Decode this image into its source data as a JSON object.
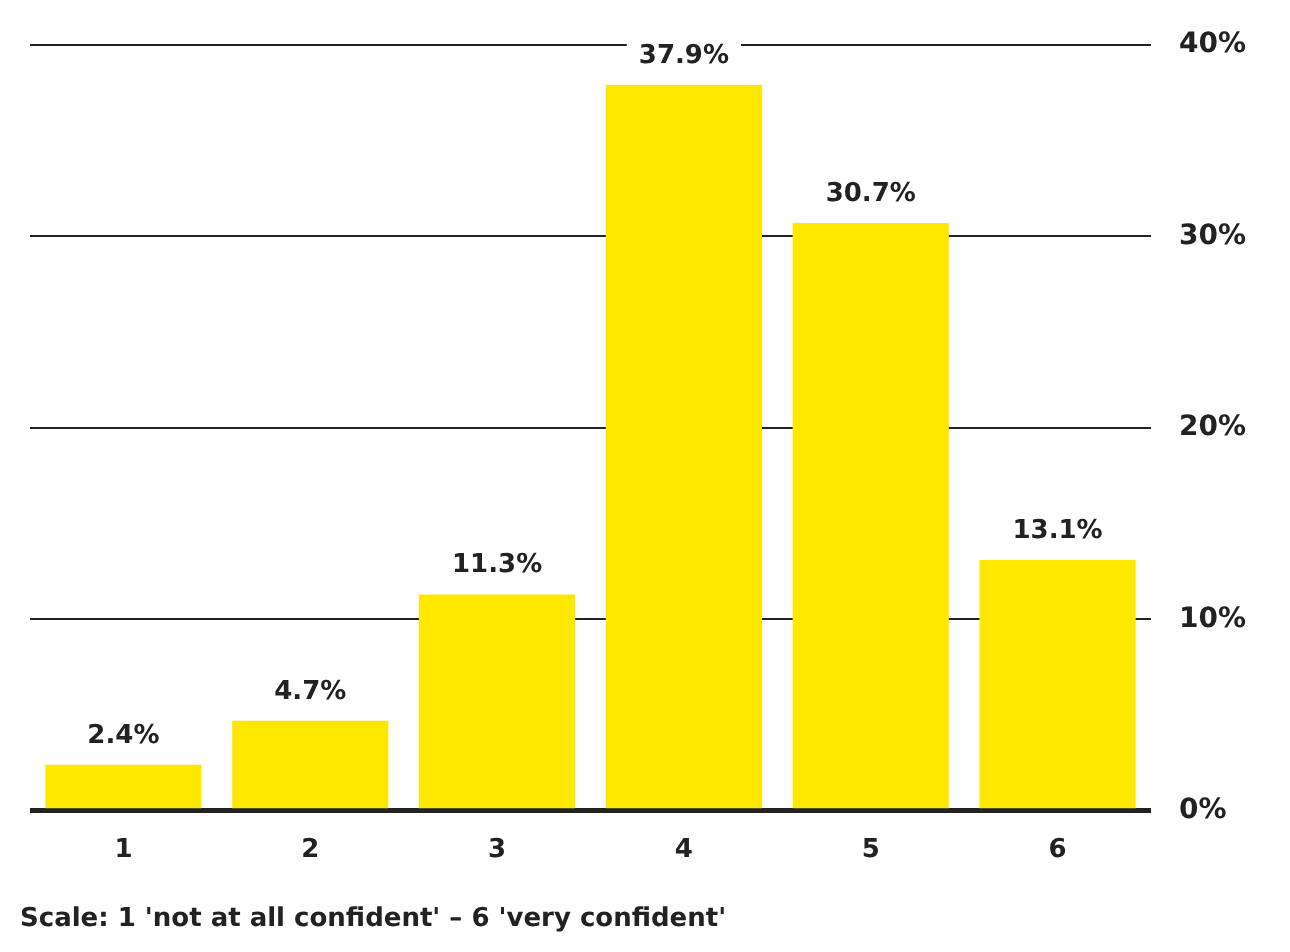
{
  "chart_data": {
    "type": "bar",
    "categories": [
      "1",
      "2",
      "3",
      "4",
      "5",
      "6"
    ],
    "values": [
      2.4,
      4.7,
      11.3,
      37.9,
      30.7,
      13.1
    ],
    "color": "#ffe800",
    "value_labels": [
      "2.4%",
      "4.7%",
      "11.3%",
      "37.9%",
      "30.7%",
      "13.1%"
    ],
    "ylim": [
      0,
      40
    ],
    "yticks": [
      {
        "value": 0,
        "label": "0%"
      },
      {
        "value": 10,
        "label": "10%"
      },
      {
        "value": 20,
        "label": "20%"
      },
      {
        "value": 30,
        "label": "30%"
      },
      {
        "value": 40,
        "label": "40%"
      }
    ],
    "grid": "y",
    "annotations": [
      "Scale: 1 'not at all confident' – 6 'very confident'"
    ]
  }
}
